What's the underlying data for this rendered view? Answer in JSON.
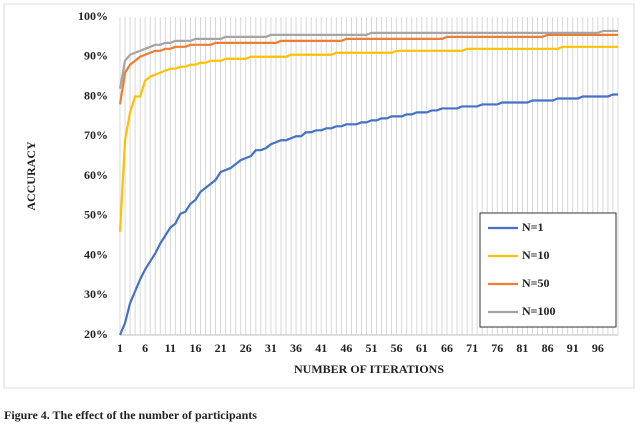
{
  "chart_data": {
    "type": "line",
    "x_label": "NUMBER OF ITERATIONS",
    "y_label": "ACCURACY",
    "caption": "Figure 4. The effect of the number of participants",
    "x": [
      1,
      2,
      3,
      4,
      5,
      6,
      7,
      8,
      9,
      10,
      11,
      12,
      13,
      14,
      15,
      16,
      17,
      18,
      19,
      20,
      21,
      22,
      23,
      24,
      25,
      26,
      27,
      28,
      29,
      30,
      31,
      32,
      33,
      34,
      35,
      36,
      37,
      38,
      39,
      40,
      41,
      42,
      43,
      44,
      45,
      46,
      47,
      48,
      49,
      50,
      51,
      52,
      53,
      54,
      55,
      56,
      57,
      58,
      59,
      60,
      61,
      62,
      63,
      64,
      65,
      66,
      67,
      68,
      69,
      70,
      71,
      72,
      73,
      74,
      75,
      76,
      77,
      78,
      79,
      80,
      81,
      82,
      83,
      84,
      85,
      86,
      87,
      88,
      89,
      90,
      91,
      92,
      93,
      94,
      95,
      96,
      97,
      98,
      99,
      100
    ],
    "xlim": [
      1,
      100
    ],
    "xticks": [
      1,
      6,
      11,
      16,
      21,
      26,
      31,
      36,
      41,
      46,
      51,
      56,
      61,
      66,
      71,
      76,
      81,
      86,
      91,
      96
    ],
    "ylim": [
      20,
      100
    ],
    "yticks": [
      {
        "value": 20,
        "label": "20%"
      },
      {
        "value": 30,
        "label": "30%"
      },
      {
        "value": 40,
        "label": "40%"
      },
      {
        "value": 50,
        "label": "50%"
      },
      {
        "value": 60,
        "label": "60%"
      },
      {
        "value": 70,
        "label": "70%"
      },
      {
        "value": 80,
        "label": "80%"
      },
      {
        "value": 90,
        "label": "90%"
      },
      {
        "value": 100,
        "label": "100%"
      }
    ],
    "grid": true,
    "legend": "lower right",
    "series": [
      {
        "name": "N=1",
        "color": "#4472c4",
        "values": [
          20,
          23,
          28,
          31,
          34,
          36.5,
          38.5,
          40.5,
          43,
          45,
          47,
          48,
          50.5,
          51,
          53,
          54,
          56,
          57,
          58,
          59,
          61,
          61.5,
          62,
          63,
          64,
          64.5,
          65,
          66.5,
          66.5,
          67,
          68,
          68.5,
          69,
          69,
          69.5,
          70,
          70,
          71,
          71,
          71.5,
          71.5,
          72,
          72,
          72.5,
          72.5,
          73,
          73,
          73,
          73.5,
          73.5,
          74,
          74,
          74.5,
          74.5,
          75,
          75,
          75,
          75.5,
          75.5,
          76,
          76,
          76,
          76.5,
          76.5,
          77,
          77,
          77,
          77,
          77.5,
          77.5,
          77.5,
          77.5,
          78,
          78,
          78,
          78,
          78.5,
          78.5,
          78.5,
          78.5,
          78.5,
          78.5,
          79,
          79,
          79,
          79,
          79,
          79.5,
          79.5,
          79.5,
          79.5,
          79.5,
          80,
          80,
          80,
          80,
          80,
          80,
          80.5,
          80.5
        ]
      },
      {
        "name": "N=10",
        "color": "#ffc000",
        "values": [
          46,
          69,
          76,
          80,
          80,
          84,
          85,
          85.5,
          86,
          86.5,
          87,
          87,
          87.5,
          87.5,
          88,
          88,
          88.5,
          88.5,
          89,
          89,
          89,
          89.5,
          89.5,
          89.5,
          89.5,
          89.5,
          90,
          90,
          90,
          90,
          90,
          90,
          90,
          90,
          90.5,
          90.5,
          90.5,
          90.5,
          90.5,
          90.5,
          90.5,
          90.5,
          90.5,
          91,
          91,
          91,
          91,
          91,
          91,
          91,
          91,
          91,
          91,
          91,
          91,
          91.5,
          91.5,
          91.5,
          91.5,
          91.5,
          91.5,
          91.5,
          91.5,
          91.5,
          91.5,
          91.5,
          91.5,
          91.5,
          91.5,
          92,
          92,
          92,
          92,
          92,
          92,
          92,
          92,
          92,
          92,
          92,
          92,
          92,
          92,
          92,
          92,
          92,
          92,
          92,
          92.5,
          92.5,
          92.5,
          92.5,
          92.5,
          92.5,
          92.5,
          92.5,
          92.5,
          92.5,
          92.5,
          92.5
        ]
      },
      {
        "name": "N=50",
        "color": "#ed7d31",
        "values": [
          78,
          86,
          88,
          89,
          90,
          90.5,
          91,
          91.5,
          91.5,
          92,
          92,
          92.5,
          92.5,
          92.5,
          93,
          93,
          93,
          93,
          93,
          93.5,
          93.5,
          93.5,
          93.5,
          93.5,
          93.5,
          93.5,
          93.5,
          93.5,
          93.5,
          93.5,
          93.5,
          93.5,
          94,
          94,
          94,
          94,
          94,
          94,
          94,
          94,
          94,
          94,
          94,
          94,
          94,
          94.5,
          94.5,
          94.5,
          94.5,
          94.5,
          94.5,
          94.5,
          94.5,
          94.5,
          94.5,
          94.5,
          94.5,
          94.5,
          94.5,
          94.5,
          94.5,
          94.5,
          94.5,
          94.5,
          94.5,
          95,
          95,
          95,
          95,
          95,
          95,
          95,
          95,
          95,
          95,
          95,
          95,
          95,
          95,
          95,
          95,
          95,
          95,
          95,
          95,
          95.5,
          95.5,
          95.5,
          95.5,
          95.5,
          95.5,
          95.5,
          95.5,
          95.5,
          95.5,
          95.5,
          95.5,
          95.5,
          95.5,
          95.5
        ]
      },
      {
        "name": "N=100",
        "color": "#a5a5a5",
        "values": [
          82,
          89,
          90.5,
          91,
          91.5,
          92,
          92.5,
          93,
          93,
          93.5,
          93.5,
          94,
          94,
          94,
          94,
          94.5,
          94.5,
          94.5,
          94.5,
          94.5,
          94.5,
          95,
          95,
          95,
          95,
          95,
          95,
          95,
          95,
          95,
          95.5,
          95.5,
          95.5,
          95.5,
          95.5,
          95.5,
          95.5,
          95.5,
          95.5,
          95.5,
          95.5,
          95.5,
          95.5,
          95.5,
          95.5,
          95.5,
          95.5,
          95.5,
          95.5,
          95.5,
          96,
          96,
          96,
          96,
          96,
          96,
          96,
          96,
          96,
          96,
          96,
          96,
          96,
          96,
          96,
          96,
          96,
          96,
          96,
          96,
          96,
          96,
          96,
          96,
          96,
          96,
          96,
          96,
          96,
          96,
          96,
          96,
          96,
          96,
          96,
          96,
          96,
          96,
          96,
          96,
          96,
          96,
          96,
          96,
          96,
          96,
          96.5,
          96.5,
          96.5,
          96.5
        ]
      }
    ]
  }
}
